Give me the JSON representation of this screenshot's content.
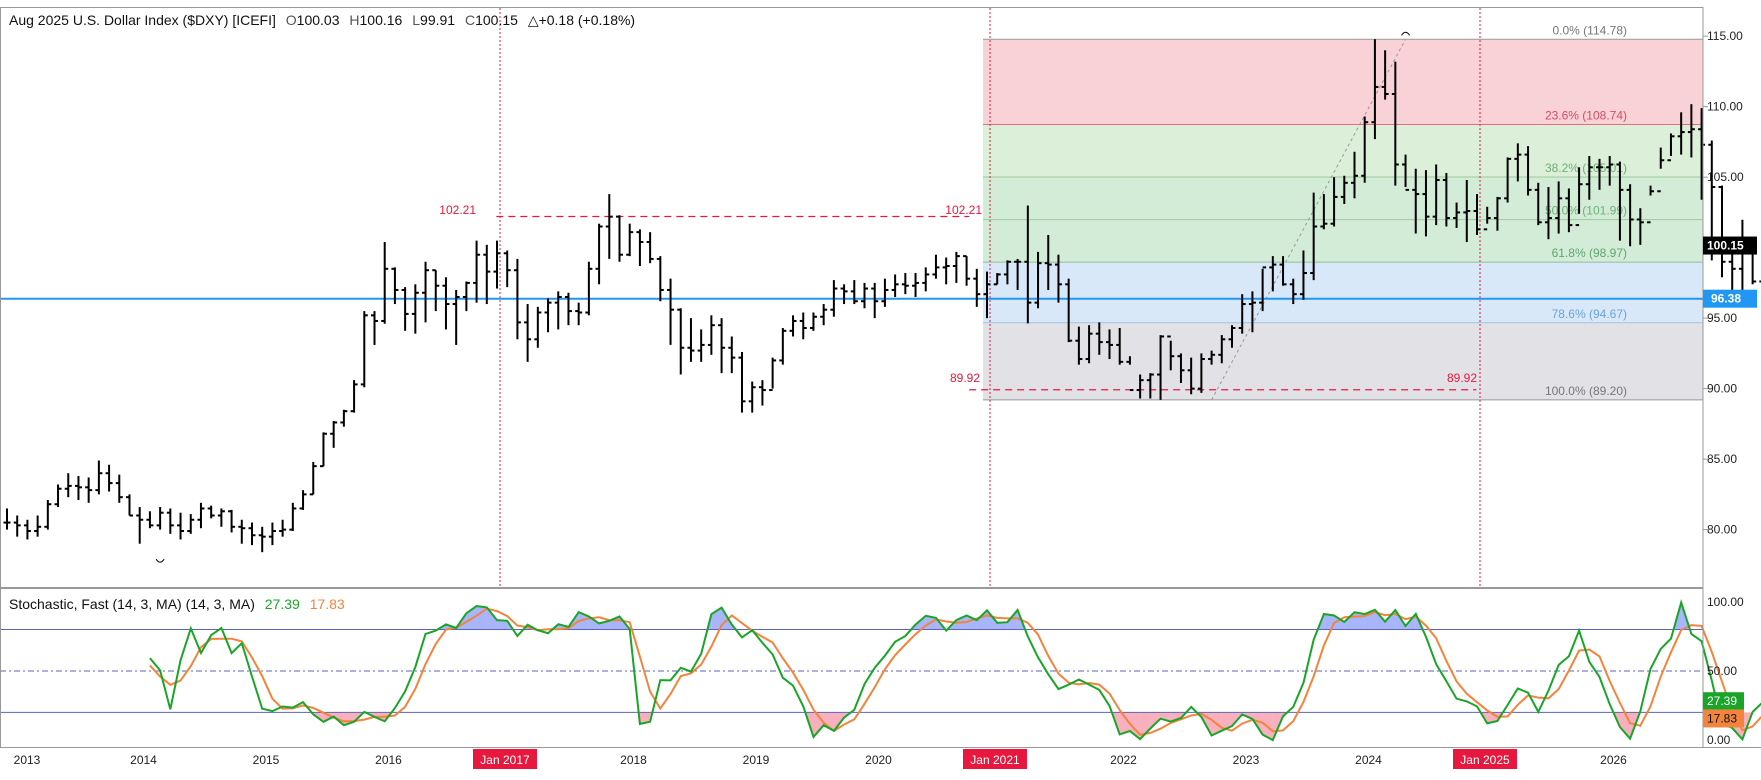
{
  "header": {
    "title": "Aug 2025  U.S. Dollar Index ($DXY) [ICEFI]",
    "open_label": "O",
    "open": "100.03",
    "high_label": "H",
    "high": "100.16",
    "low_label": "L",
    "low": "99.91",
    "close_label": "C",
    "close": "100.15",
    "change": "△+0.18 (+0.18%)"
  },
  "stoch_legend": {
    "name": "Stochastic, Fast (14, 3, MA)  (14, 3, MA)",
    "k_value": "27.39",
    "d_value": "17.83"
  },
  "colors": {
    "bar": "#000000",
    "support_line": "#2196f3",
    "annotation_red": "#e8173d",
    "k_line": "#19a528",
    "d_line": "#f2843c",
    "overbought_fill": "#3d5cf5",
    "oversold_fill": "#f0506e",
    "fib_0_236": "#f8d2d6",
    "fib_236_382": "#dcefd9",
    "fib_382_618": "#d3ecd7",
    "fib_618_786": "#d8e8f8",
    "fib_786_100": "#e2e2e6"
  },
  "chart_data": [
    {
      "type": "ohlc",
      "title": "Aug 2025  U.S. Dollar Index ($DXY) [ICEFI]",
      "timeframe": "monthly",
      "x_ticks": [
        "2013",
        "2014",
        "2015",
        "2016",
        "Jan 2017",
        "2018",
        "2019",
        "2020",
        "Jan 2021",
        "2022",
        "2023",
        "2024",
        "Jan 2025",
        "2026"
      ],
      "highlighted_x_ticks": [
        "Jan 2017",
        "Jan 2021",
        "Jan 2025"
      ],
      "y_ticks": [
        "80.00",
        "85.00",
        "90.00",
        "95.00",
        "100.00",
        "105.00",
        "110.00",
        "115.00"
      ],
      "ylim": [
        76.0,
        117.0
      ],
      "last_price_label": "100.15",
      "support_level": {
        "value": 96.38,
        "label": "96.38"
      },
      "annotations": [
        {
          "label": "102.21",
          "value": 102.21,
          "style": "dashed",
          "from": 2016.97,
          "to": 2020.83
        },
        {
          "label": "102.21",
          "value": 102.21
        },
        {
          "label": "89.92",
          "value": 89.92,
          "style": "dashed",
          "from": 2020.83,
          "to": 2024.97
        },
        {
          "label": "89.92",
          "value": 89.92
        }
      ],
      "vertical_markers": [
        "Jan 2017",
        "Jan 2021",
        "Jan 2025"
      ],
      "fibonacci": [
        {
          "label": "0.0% (114.78)",
          "value": 114.78
        },
        {
          "label": "23.6% (108.74)",
          "value": 108.74
        },
        {
          "label": "38.2% (105.01)",
          "value": 105.01
        },
        {
          "label": "50.0% (101.99)",
          "value": 101.99
        },
        {
          "label": "61.8% (98.97)",
          "value": 98.97
        },
        {
          "label": "78.6% (94.67)",
          "value": 94.67
        },
        {
          "label": "100.0% (89.20)",
          "value": 89.2
        }
      ],
      "closes": [
        80.5,
        80.3,
        79.9,
        80.2,
        81.8,
        82.9,
        83.1,
        83.0,
        82.8,
        84.0,
        83.3,
        82.3,
        81.0,
        80.7,
        80.3,
        81.2,
        80.3,
        79.9,
        80.7,
        81.5,
        81.0,
        81.3,
        80.2,
        80.1,
        79.6,
        79.5,
        79.9,
        80.0,
        81.5,
        82.5,
        84.5,
        86.8,
        87.6,
        88.4,
        90.3,
        95.2,
        94.8,
        98.5,
        97.0,
        95.3,
        96.8,
        98.4,
        97.3,
        96.0,
        96.5,
        97.5,
        99.5,
        98.3,
        99.6,
        98.4,
        94.7,
        93.5,
        95.4,
        96.1,
        96.5,
        95.5,
        95.4,
        98.5,
        101.5,
        102.2,
        99.5,
        101.1,
        100.4,
        99.2,
        97.0,
        95.6,
        92.9,
        92.7,
        93.1,
        94.5,
        92.9,
        92.2,
        89.1,
        90.1,
        89.9,
        92.0,
        94.1,
        94.8,
        94.3,
        95.1,
        95.6,
        97.1,
        96.9,
        96.2,
        97.1,
        96.2,
        97.0,
        97.4,
        97.3,
        97.5,
        98.1,
        98.6,
        98.7,
        99.4,
        97.8,
        96.7,
        97.4,
        98.1,
        99.0,
        99.0,
        96.1,
        98.9,
        98.8,
        97.4,
        93.4,
        92.1,
        93.9,
        93.3,
        93.1,
        91.9,
        89.9,
        90.6,
        91.0,
        93.7,
        92.3,
        91.3,
        90.0,
        92.1,
        92.4,
        93.5,
        94.3,
        96.0,
        96.1,
        98.6,
        98.8,
        97.4,
        96.7,
        98.2,
        101.5,
        101.7,
        103.6,
        104.6,
        105.1,
        108.9,
        111.4,
        110.9,
        105.9,
        104.1,
        103.8,
        102.2,
        104.8,
        102.1,
        102.5,
        102.6,
        101.3,
        102.1,
        103.5,
        106.3,
        106.6,
        104.1,
        101.8,
        102.1,
        103.5,
        101.6,
        104.5,
        105.7,
        105.7,
        105.9,
        104.1,
        102.0,
        101.8,
        104.0,
        106.2,
        107.9,
        108.2,
        108.4,
        107.3,
        104.3,
        99.0,
        98.5,
        96.9,
        97.6,
        100.15
      ],
      "highs": [
        81.5,
        81.0,
        80.7,
        81.0,
        82.1,
        83.2,
        84.0,
        83.8,
        83.7,
        84.9,
        84.6,
        83.9,
        82.5,
        81.6,
        81.3,
        81.6,
        81.5,
        81.2,
        81.1,
        81.9,
        81.7,
        81.5,
        81.4,
        80.7,
        80.5,
        80.2,
        80.5,
        80.7,
        81.9,
        82.8,
        84.8,
        86.9,
        87.7,
        88.5,
        90.6,
        95.5,
        95.5,
        100.4,
        98.6,
        97.2,
        97.4,
        99.0,
        98.4,
        97.9,
        97.0,
        97.6,
        100.5,
        100.2,
        100.5,
        99.8,
        99.2,
        96.0,
        95.8,
        96.4,
        96.9,
        96.8,
        96.1,
        99.0,
        101.7,
        103.8,
        102.3,
        101.7,
        101.3,
        101.1,
        99.4,
        97.8,
        95.7,
        95.0,
        94.2,
        95.2,
        95.0,
        93.7,
        92.6,
        90.5,
        90.6,
        92.2,
        94.3,
        95.2,
        95.4,
        95.4,
        96.0,
        97.7,
        97.4,
        97.7,
        97.5,
        97.5,
        97.8,
        98.1,
        98.2,
        98.2,
        98.6,
        99.5,
        99.3,
        99.7,
        99.4,
        98.5,
        98.3,
        98.2,
        99.1,
        99.2,
        102.99,
        99.7,
        100.9,
        99.5,
        97.8,
        94.4,
        94.5,
        94.7,
        94.2,
        94.3,
        92.3,
        91.0,
        91.1,
        93.8,
        93.4,
        92.5,
        92.2,
        92.5,
        92.7,
        93.8,
        94.5,
        96.7,
        96.9,
        98.5,
        99.4,
        99.4,
        97.8,
        99.8,
        103.9,
        103.8,
        105.0,
        105.1,
        106.8,
        109.3,
        114.78,
        114.0,
        113.2,
        106.6,
        105.6,
        105.5,
        105.9,
        105.3,
        103.2,
        104.8,
        103.8,
        102.9,
        103.6,
        106.4,
        107.4,
        107.2,
        104.6,
        104.3,
        104.7,
        104.2,
        105.7,
        106.5,
        106.3,
        106.5,
        106.1,
        104.5,
        102.8,
        104.4,
        107.1,
        108.1,
        109.6,
        110.18,
        109.9,
        107.6,
        104.4,
        100.4,
        101.98,
        99.6,
        100.16
      ],
      "lows": [
        80.0,
        79.5,
        79.3,
        79.5,
        80.0,
        81.6,
        82.3,
        82.1,
        81.9,
        82.5,
        82.7,
        81.9,
        81.0,
        79.0,
        80.1,
        80.0,
        79.7,
        79.3,
        79.7,
        80.1,
        80.8,
        80.2,
        79.8,
        79.0,
        78.9,
        78.4,
        78.9,
        79.5,
        79.9,
        81.4,
        82.5,
        84.5,
        85.8,
        87.3,
        88.3,
        90.1,
        93.1,
        94.6,
        96.0,
        94.1,
        93.9,
        94.7,
        95.5,
        94.2,
        93.1,
        95.5,
        96.1,
        96.0,
        97.1,
        97.2,
        93.5,
        91.9,
        92.9,
        94.0,
        94.2,
        94.5,
        94.5,
        95.2,
        97.4,
        99.2,
        99.0,
        99.4,
        98.7,
        98.9,
        96.2,
        93.1,
        91.0,
        91.9,
        91.9,
        92.4,
        91.1,
        91.1,
        88.3,
        88.3,
        88.8,
        90.0,
        91.7,
        93.7,
        93.5,
        94.1,
        94.5,
        95.1,
        96.0,
        96.0,
        95.7,
        95.0,
        95.8,
        96.5,
        96.7,
        96.5,
        96.9,
        97.8,
        97.4,
        97.5,
        97.3,
        95.8,
        95.0,
        97.4,
        97.4,
        97.0,
        94.63,
        95.7,
        97.0,
        96.1,
        93.3,
        91.7,
        91.8,
        92.4,
        92.1,
        91.7,
        91.7,
        89.3,
        89.3,
        89.2,
        91.3,
        90.4,
        89.6,
        89.7,
        91.7,
        91.8,
        92.9,
        93.9,
        94.0,
        95.5,
        96.9,
        97.3,
        96.0,
        96.3,
        97.7,
        101.3,
        101.5,
        103.1,
        103.5,
        104.6,
        107.7,
        110.5,
        104.4,
        104.3,
        101.0,
        100.8,
        101.6,
        101.5,
        101.4,
        100.4,
        100.9,
        101.7,
        101.2,
        103.2,
        104.7,
        103.7,
        101.6,
        100.6,
        101.0,
        101.1,
        102.4,
        103.4,
        104.1,
        104.4,
        100.5,
        100.1,
        100.2,
        103.7,
        105.6,
        106.5,
        106.6,
        106.4,
        103.4,
        99.1,
        97.9,
        97.0,
        96.38,
        97.4,
        99.91
      ]
    },
    {
      "type": "line",
      "title": "Stochastic, Fast (14, 3, MA)  (14, 3, MA)",
      "ylim": [
        -5,
        110
      ],
      "y_ticks": [
        "0.00",
        "50.00",
        "100.00"
      ],
      "levels": [
        20,
        50,
        80
      ],
      "last_labels": [
        "27.39",
        "17.83"
      ],
      "series": [
        {
          "name": "%K",
          "values": [
            59.3,
            50.4,
            22.3,
            57.6,
            80.8,
            63.0,
            75.9,
            81.1,
            62.9,
            70.1,
            46.0,
            22.7,
            21.0,
            24.3,
            23.5,
            27.5,
            18.6,
            13.2,
            17.0,
            10.7,
            13.3,
            20.4,
            16.8,
            13.6,
            23.1,
            35.2,
            52.8,
            76.7,
            79.2,
            83.7,
            81.1,
            91.8,
            97.0,
            96.0,
            86.8,
            86.3,
            75.3,
            83.4,
            79.5,
            77.3,
            83.8,
            81.9,
            92.6,
            89.4,
            84.4,
            86.3,
            89.4,
            80.3,
            11.6,
            13.3,
            43.4,
            43.2,
            52.3,
            49.5,
            62.4,
            91.1,
            95.8,
            83.6,
            74.3,
            79.5,
            70.4,
            62.0,
            45.1,
            39.4,
            24.4,
            2.2,
            10.8,
            6.7,
            16.3,
            21.9,
            40.5,
            52.2,
            61.0,
            71.1,
            75.2,
            83.5,
            89.9,
            88.4,
            79.2,
            86.8,
            90.1,
            86.7,
            93.8,
            84.8,
            85.3,
            94.1,
            74.9,
            59.9,
            47.6,
            36.9,
            40.1,
            43.8,
            40.1,
            36.3,
            24.8,
            4.1,
            6.6,
            0.7,
            8.4,
            15.5,
            13.4,
            16.0,
            24.0,
            16.7,
            3.3,
            6.8,
            10.2,
            18.6,
            15.3,
            4.0,
            0.0,
            17.1,
            24.1,
            41.5,
            72.7,
            91.2,
            90.1,
            85.4,
            92.5,
            91.1,
            94.2,
            85.6,
            94.1,
            82.5,
            91.3,
            74.6,
            54.9,
            42.5,
            29.9,
            28.0,
            24.4,
            12.1,
            13.8,
            25.4,
            37.3,
            34.3,
            20.4,
            35.9,
            54.4,
            60.6,
            79.2,
            56.6,
            45.6,
            26.0,
            9.5,
            1.0,
            20.8,
            51.5,
            66.0,
            73.4,
            99.5,
            76.7,
            71.5,
            43.0,
            12.0,
            8.8,
            0.5,
            20.4,
            27.39
          ]
        },
        {
          "name": "%D",
          "values": [
            54.0,
            46.0,
            40.0,
            43.0,
            53.5,
            67.1,
            73.2,
            73.3,
            73.3,
            71.4,
            59.7,
            46.3,
            29.9,
            22.7,
            22.9,
            25.1,
            23.2,
            19.8,
            16.3,
            13.6,
            13.7,
            14.8,
            16.8,
            16.9,
            17.8,
            24.0,
            37.0,
            54.9,
            69.6,
            79.9,
            81.3,
            85.5,
            90.0,
            95.0,
            93.3,
            89.7,
            82.8,
            81.7,
            79.4,
            80.1,
            80.2,
            81.0,
            86.1,
            88.0,
            88.8,
            86.7,
            86.7,
            85.3,
            60.4,
            35.1,
            22.8,
            33.3,
            46.3,
            48.3,
            54.7,
            67.7,
            83.1,
            90.2,
            84.6,
            79.1,
            74.7,
            70.6,
            59.2,
            48.8,
            36.3,
            22.0,
            12.5,
            6.6,
            11.3,
            15.0,
            26.2,
            38.2,
            51.2,
            61.4,
            69.1,
            76.6,
            82.9,
            87.3,
            85.8,
            84.8,
            85.4,
            87.9,
            90.2,
            88.4,
            88.0,
            88.1,
            84.8,
            76.3,
            60.8,
            48.1,
            41.5,
            40.3,
            41.3,
            40.1,
            33.7,
            21.7,
            11.8,
            3.8,
            5.2,
            8.2,
            12.4,
            15.0,
            17.8,
            19.0,
            14.7,
            8.9,
            6.8,
            11.9,
            14.7,
            12.6,
            6.4,
            7.0,
            13.7,
            27.6,
            46.1,
            68.5,
            84.7,
            88.9,
            89.3,
            89.7,
            92.6,
            90.3,
            91.3,
            87.4,
            89.3,
            82.8,
            73.6,
            57.3,
            42.4,
            33.5,
            27.4,
            21.5,
            16.8,
            17.1,
            25.5,
            32.3,
            30.7,
            30.2,
            36.9,
            50.3,
            64.7,
            65.5,
            60.5,
            42.7,
            27.0,
            12.2,
            10.4,
            24.4,
            46.1,
            63.6,
            79.6,
            83.2,
            82.6,
            63.7,
            42.2,
            21.3,
            7.1,
            9.9,
            17.83
          ]
        }
      ]
    }
  ]
}
